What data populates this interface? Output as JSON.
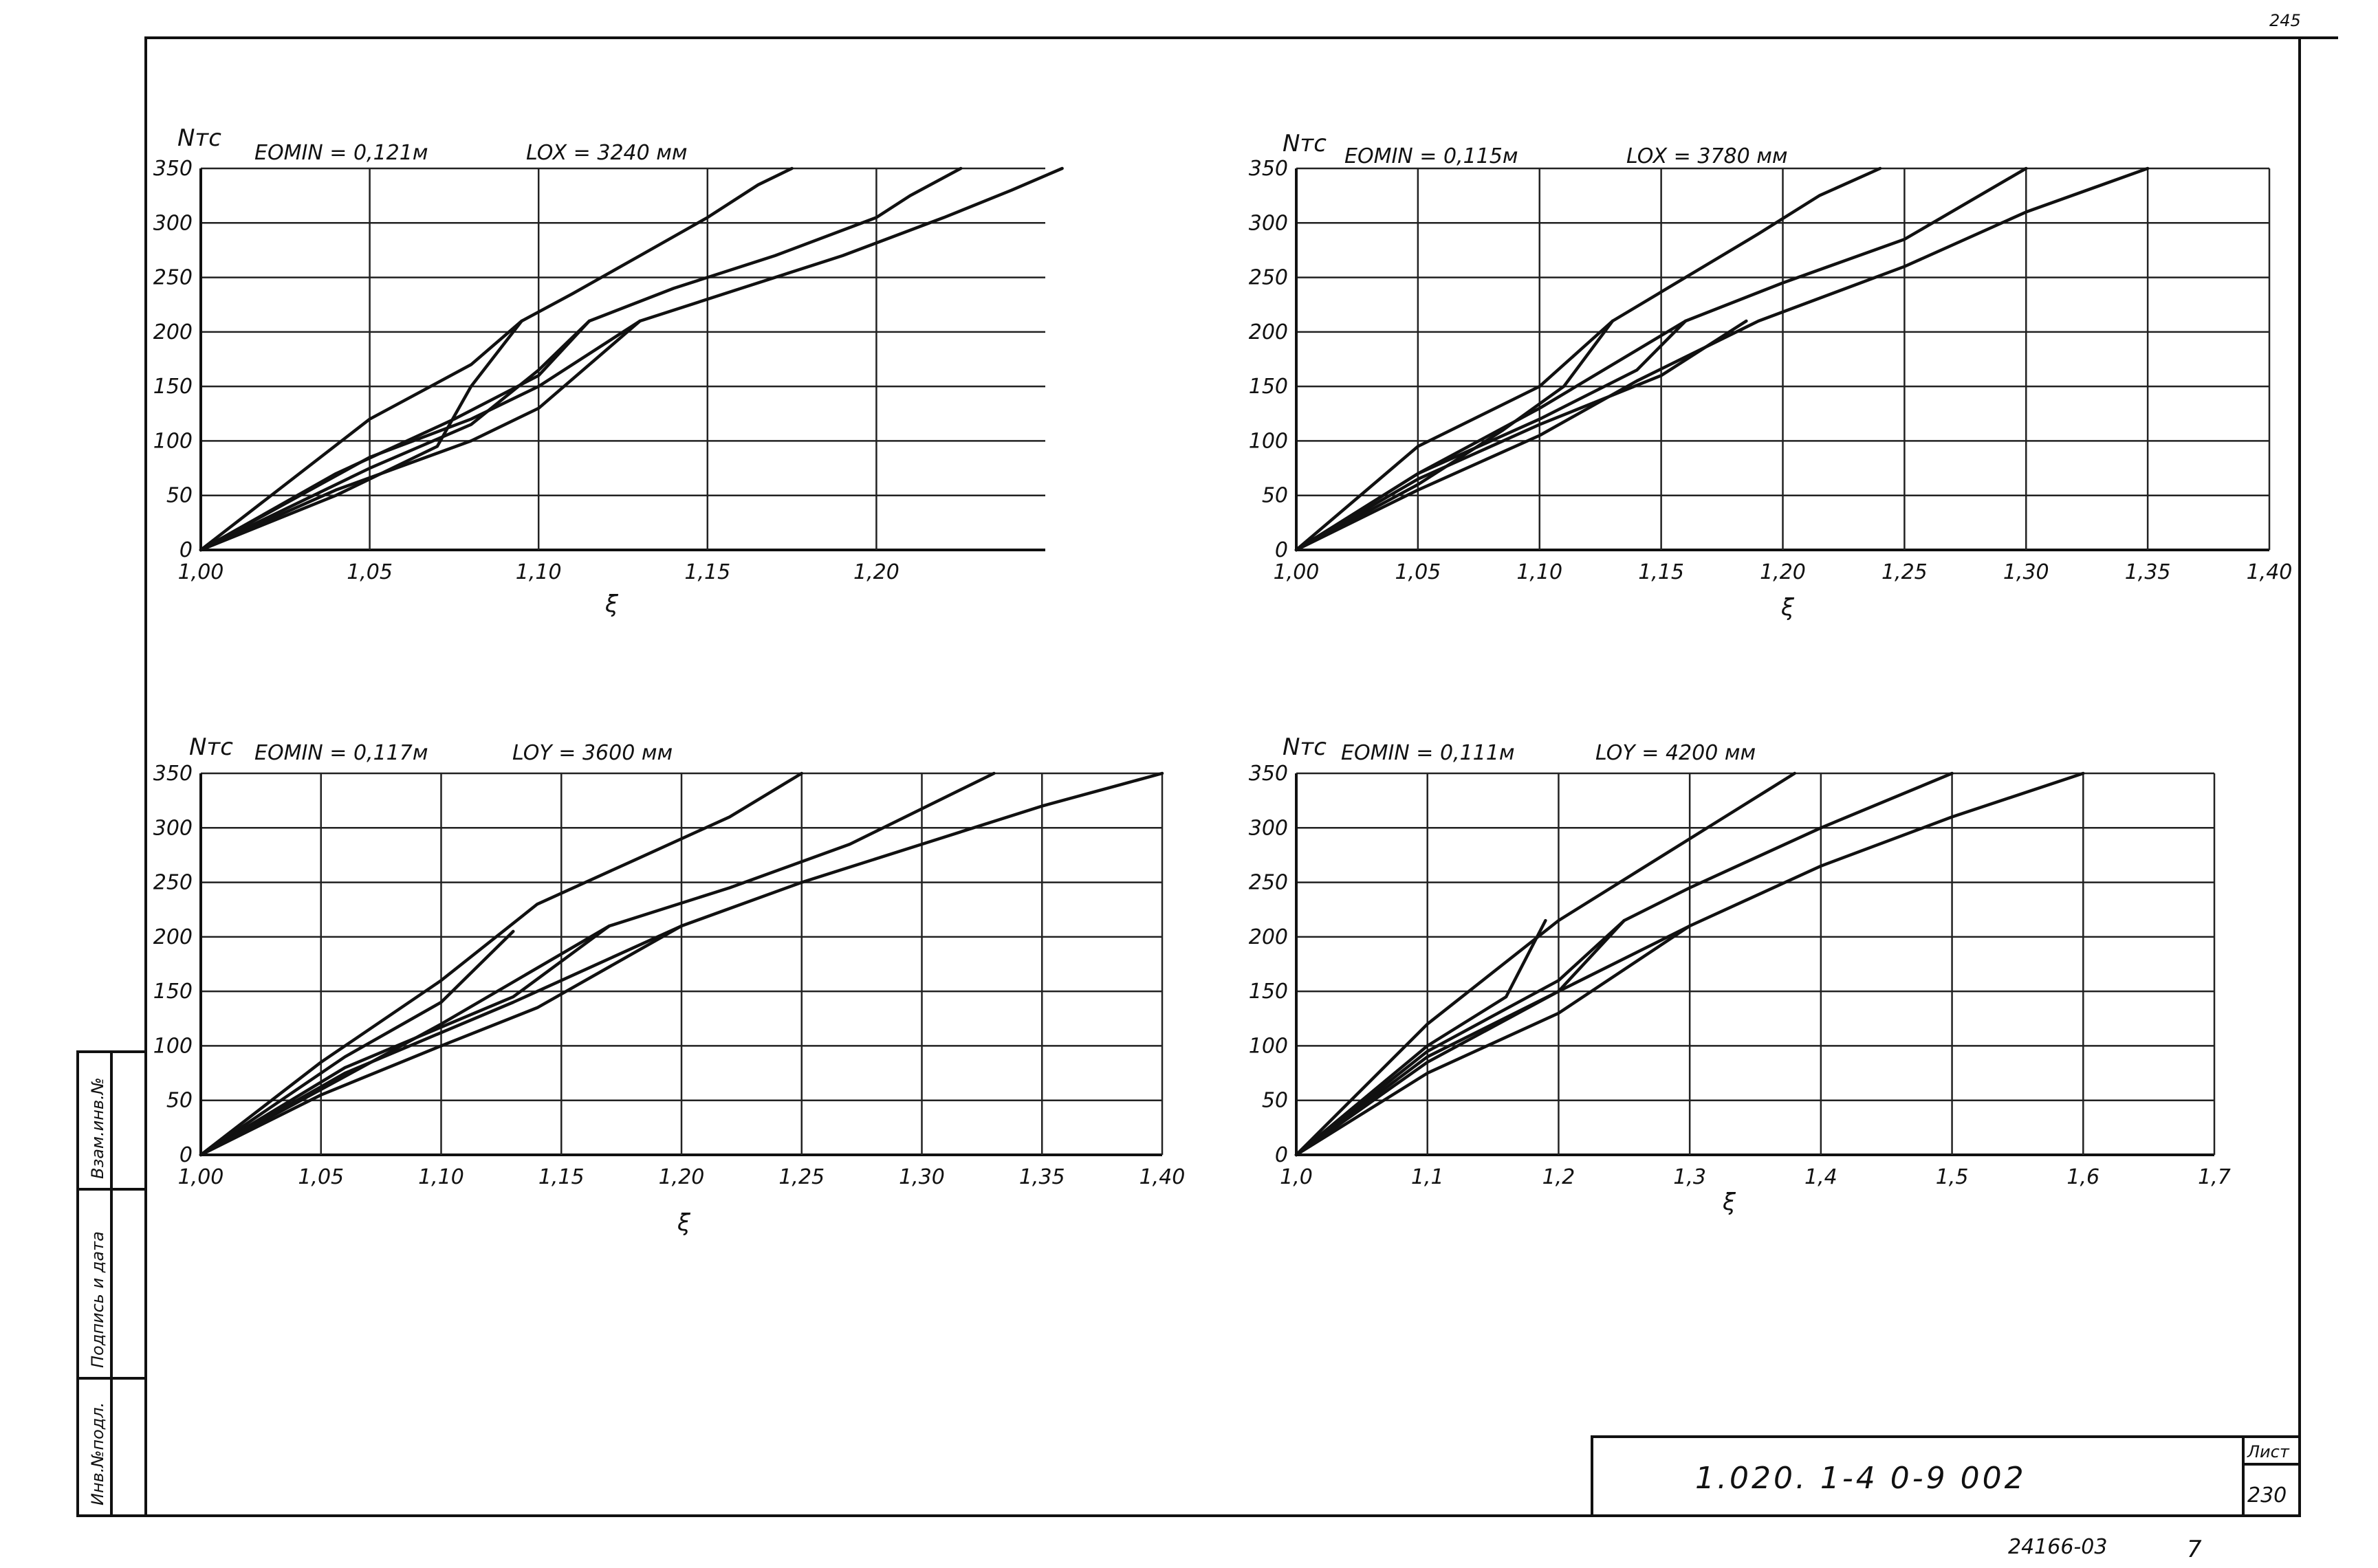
{
  "sheet": {
    "corner_number": "245",
    "drawing_code": "1.020. 1-4    0-9    002",
    "sheet_label": "Лист",
    "sheet_number": "230",
    "archive_number": "24166-03",
    "page_number": "7",
    "side_labels": [
      "Инв.№подл.",
      "Подпись и дата",
      "Взам.инв.№"
    ]
  },
  "chart_data": [
    {
      "type": "line",
      "title_left": "EOMIN = 0,121м",
      "title_right": "LOX = 3240 мм",
      "ylabel": "Nтс",
      "xlabel": "ξ",
      "xlim": [
        1.0,
        1.25
      ],
      "ylim": [
        0,
        350
      ],
      "x_ticks": [
        "1,00",
        "1,05",
        "1,10",
        "1,15",
        "1,20"
      ],
      "x_tick_values": [
        1.0,
        1.05,
        1.1,
        1.15,
        1.2
      ],
      "y_ticks": [
        "0",
        "50",
        "100",
        "150",
        "200",
        "250",
        "300",
        "350"
      ],
      "y_tick_values": [
        0,
        50,
        100,
        150,
        200,
        250,
        300,
        350
      ],
      "grid": true,
      "series": [
        {
          "points": [
            [
              1.0,
              0
            ],
            [
              1.05,
              120
            ],
            [
              1.08,
              170
            ],
            [
              1.095,
              210
            ],
            [
              1.11,
              235
            ],
            [
              1.13,
              270
            ],
            [
              1.15,
              305
            ],
            [
              1.165,
              335
            ],
            [
              1.175,
              350
            ]
          ]
        },
        {
          "points": [
            [
              1.0,
              0
            ],
            [
              1.04,
              70
            ],
            [
              1.075,
              120
            ],
            [
              1.1,
              160
            ],
            [
              1.115,
              210
            ],
            [
              1.14,
              240
            ],
            [
              1.17,
              270
            ],
            [
              1.2,
              305
            ],
            [
              1.21,
              325
            ],
            [
              1.225,
              350
            ]
          ]
        },
        {
          "points": [
            [
              1.0,
              0
            ],
            [
              1.04,
              55
            ],
            [
              1.08,
              100
            ],
            [
              1.1,
              130
            ],
            [
              1.13,
              210
            ],
            [
              1.16,
              240
            ],
            [
              1.19,
              270
            ],
            [
              1.22,
              305
            ],
            [
              1.24,
              330
            ],
            [
              1.255,
              350
            ]
          ]
        },
        {
          "points": [
            [
              1.0,
              0
            ],
            [
              1.04,
              50
            ],
            [
              1.07,
              95
            ],
            [
              1.08,
              150
            ],
            [
              1.095,
              210
            ]
          ]
        },
        {
          "points": [
            [
              1.0,
              0
            ],
            [
              1.05,
              75
            ],
            [
              1.08,
              115
            ],
            [
              1.1,
              165
            ],
            [
              1.115,
              210
            ]
          ]
        },
        {
          "points": [
            [
              1.0,
              0
            ],
            [
              1.05,
              85
            ],
            [
              1.08,
              120
            ],
            [
              1.1,
              150
            ],
            [
              1.13,
              210
            ]
          ]
        }
      ]
    },
    {
      "type": "line",
      "title_left": "EOMIN = 0,115м",
      "title_right": "LOX = 3780 мм",
      "ylabel": "Nтс",
      "xlabel": "ξ",
      "xlim": [
        1.0,
        1.4
      ],
      "ylim": [
        0,
        350
      ],
      "x_ticks": [
        "1,00",
        "1,05",
        "1,10",
        "1,15",
        "1,20",
        "1,25",
        "1,30",
        "1,35",
        "1,40"
      ],
      "x_tick_values": [
        1.0,
        1.05,
        1.1,
        1.15,
        1.2,
        1.25,
        1.3,
        1.35,
        1.4
      ],
      "y_ticks": [
        "0",
        "50",
        "100",
        "150",
        "200",
        "250",
        "300",
        "350"
      ],
      "y_tick_values": [
        0,
        50,
        100,
        150,
        200,
        250,
        300,
        350
      ],
      "grid": true,
      "series": [
        {
          "points": [
            [
              1.0,
              0
            ],
            [
              1.05,
              95
            ],
            [
              1.1,
              150
            ],
            [
              1.13,
              210
            ],
            [
              1.16,
              250
            ],
            [
              1.19,
              290
            ],
            [
              1.215,
              325
            ],
            [
              1.24,
              350
            ]
          ]
        },
        {
          "points": [
            [
              1.0,
              0
            ],
            [
              1.05,
              70
            ],
            [
              1.1,
              130
            ],
            [
              1.16,
              210
            ],
            [
              1.2,
              245
            ],
            [
              1.25,
              285
            ],
            [
              1.3,
              350
            ]
          ]
        },
        {
          "points": [
            [
              1.0,
              0
            ],
            [
              1.05,
              55
            ],
            [
              1.1,
              105
            ],
            [
              1.14,
              155
            ],
            [
              1.19,
              210
            ],
            [
              1.25,
              260
            ],
            [
              1.3,
              310
            ],
            [
              1.35,
              350
            ]
          ]
        },
        {
          "points": [
            [
              1.0,
              0
            ],
            [
              1.05,
              60
            ],
            [
              1.085,
              110
            ],
            [
              1.11,
              150
            ],
            [
              1.13,
              210
            ]
          ]
        },
        {
          "points": [
            [
              1.0,
              0
            ],
            [
              1.05,
              70
            ],
            [
              1.1,
              120
            ],
            [
              1.14,
              165
            ],
            [
              1.16,
              210
            ]
          ]
        },
        {
          "points": [
            [
              1.0,
              0
            ],
            [
              1.05,
              65
            ],
            [
              1.1,
              115
            ],
            [
              1.15,
              160
            ],
            [
              1.185,
              210
            ]
          ]
        }
      ]
    },
    {
      "type": "line",
      "title_left": "EOMIN = 0,117м",
      "title_right": "LOY = 3600 мм",
      "ylabel": "Nтс",
      "xlabel": "ξ",
      "xlim": [
        1.0,
        1.4
      ],
      "ylim": [
        0,
        350
      ],
      "x_ticks": [
        "1,00",
        "1,05",
        "1,10",
        "1,15",
        "1,20",
        "1,25",
        "1,30",
        "1,35",
        "1,40"
      ],
      "x_tick_values": [
        1.0,
        1.05,
        1.1,
        1.15,
        1.2,
        1.25,
        1.3,
        1.35,
        1.4
      ],
      "y_ticks": [
        "0",
        "50",
        "100",
        "150",
        "200",
        "250",
        "300",
        "350"
      ],
      "y_tick_values": [
        0,
        50,
        100,
        150,
        200,
        250,
        300,
        350
      ],
      "grid": true,
      "series": [
        {
          "points": [
            [
              1.0,
              0
            ],
            [
              1.05,
              85
            ],
            [
              1.1,
              160
            ],
            [
              1.14,
              230
            ],
            [
              1.18,
              270
            ],
            [
              1.22,
              310
            ],
            [
              1.25,
              350
            ]
          ]
        },
        {
          "points": [
            [
              1.0,
              0
            ],
            [
              1.05,
              60
            ],
            [
              1.1,
              120
            ],
            [
              1.17,
              210
            ],
            [
              1.22,
              245
            ],
            [
              1.27,
              285
            ],
            [
              1.33,
              350
            ]
          ]
        },
        {
          "points": [
            [
              1.0,
              0
            ],
            [
              1.05,
              55
            ],
            [
              1.1,
              100
            ],
            [
              1.14,
              135
            ],
            [
              1.2,
              210
            ],
            [
              1.25,
              250
            ],
            [
              1.3,
              285
            ],
            [
              1.35,
              320
            ],
            [
              1.4,
              350
            ]
          ]
        },
        {
          "points": [
            [
              1.0,
              0
            ],
            [
              1.06,
              90
            ],
            [
              1.1,
              140
            ],
            [
              1.13,
              205
            ]
          ]
        },
        {
          "points": [
            [
              1.0,
              0
            ],
            [
              1.06,
              80
            ],
            [
              1.13,
              145
            ],
            [
              1.17,
              210
            ]
          ]
        },
        {
          "points": [
            [
              1.0,
              0
            ],
            [
              1.06,
              75
            ],
            [
              1.13,
              140
            ],
            [
              1.2,
              210
            ]
          ]
        }
      ]
    },
    {
      "type": "line",
      "title_left": "EOMIN = 0,111м",
      "title_right": "LOY = 4200 мм",
      "ylabel": "Nтс",
      "xlabel": "ξ",
      "xlim": [
        1.0,
        1.7
      ],
      "ylim": [
        0,
        350
      ],
      "x_ticks": [
        "1,0",
        "1,1",
        "1,2",
        "1,3",
        "1,4",
        "1,5",
        "1,6",
        "1,7"
      ],
      "x_tick_values": [
        1.0,
        1.1,
        1.2,
        1.3,
        1.4,
        1.5,
        1.6,
        1.7
      ],
      "y_ticks": [
        "0",
        "50",
        "100",
        "150",
        "200",
        "250",
        "300",
        "350"
      ],
      "y_tick_values": [
        0,
        50,
        100,
        150,
        200,
        250,
        300,
        350
      ],
      "grid": true,
      "series": [
        {
          "points": [
            [
              1.0,
              0
            ],
            [
              1.1,
              120
            ],
            [
              1.2,
              215
            ],
            [
              1.26,
              260
            ],
            [
              1.32,
              305
            ],
            [
              1.36,
              335
            ],
            [
              1.38,
              350
            ]
          ]
        },
        {
          "points": [
            [
              1.0,
              0
            ],
            [
              1.1,
              95
            ],
            [
              1.2,
              160
            ],
            [
              1.25,
              215
            ],
            [
              1.3,
              245
            ],
            [
              1.4,
              300
            ],
            [
              1.5,
              350
            ]
          ]
        },
        {
          "points": [
            [
              1.0,
              0
            ],
            [
              1.1,
              75
            ],
            [
              1.2,
              130
            ],
            [
              1.3,
              210
            ],
            [
              1.4,
              265
            ],
            [
              1.5,
              310
            ],
            [
              1.6,
              350
            ]
          ]
        },
        {
          "points": [
            [
              1.0,
              0
            ],
            [
              1.1,
              100
            ],
            [
              1.16,
              145
            ],
            [
              1.19,
              215
            ]
          ]
        },
        {
          "points": [
            [
              1.0,
              0
            ],
            [
              1.1,
              90
            ],
            [
              1.2,
              150
            ],
            [
              1.25,
              215
            ]
          ]
        },
        {
          "points": [
            [
              1.0,
              0
            ],
            [
              1.1,
              85
            ],
            [
              1.2,
              150
            ],
            [
              1.3,
              210
            ]
          ]
        }
      ]
    }
  ]
}
